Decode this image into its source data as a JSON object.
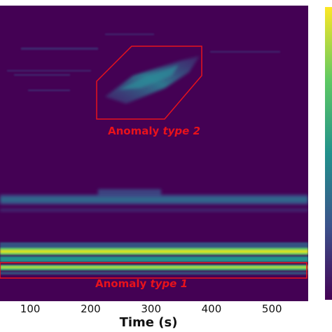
{
  "chart_data": {
    "type": "heatmap",
    "title": "",
    "xlabel": "Time (s)",
    "ylabel": "",
    "x_ticks": [
      100,
      200,
      300,
      400,
      500
    ],
    "xlim": [
      50,
      560
    ],
    "colormap": "viridis",
    "background_color": "#440154",
    "annotation_color": "#e8121c",
    "bands": [
      {
        "level": "high",
        "note": "bright horizontal band near the bottom, across full time range"
      },
      {
        "level": "medium",
        "note": "faint horizontal band in the lower middle, across full time range"
      },
      {
        "level": "medium",
        "note": "diagonal blob between ~220 s and ~390 s in the upper region"
      }
    ],
    "annotations": [
      {
        "name": "type-2",
        "prefix": "Anomaly ",
        "emphasis": "type 2",
        "time_range": [
          220,
          390
        ]
      },
      {
        "name": "type-1",
        "prefix": "Anomaly ",
        "emphasis": "type 1",
        "time_range": [
          50,
          560
        ]
      }
    ]
  }
}
